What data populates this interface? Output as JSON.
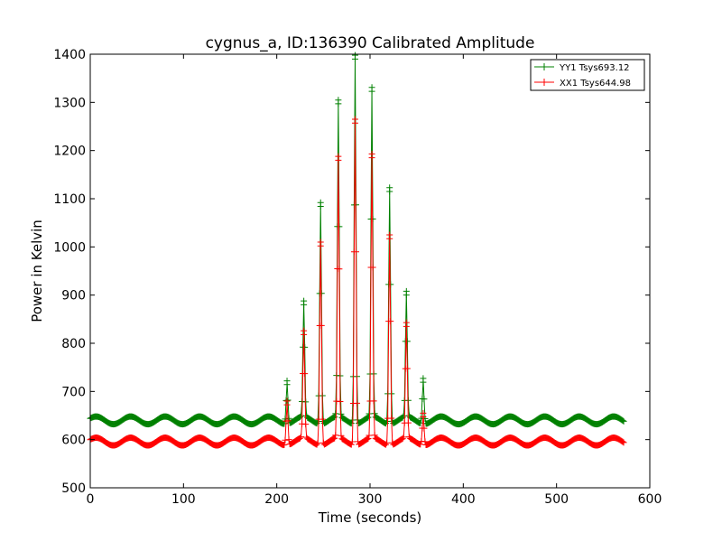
{
  "chart_data": {
    "type": "line",
    "title": "cygnus_a, ID:136390 Calibrated Amplitude",
    "xlabel": "Time (seconds)",
    "ylabel": "Power in Kelvin",
    "xlim": [
      0,
      600
    ],
    "ylim": [
      500,
      1400
    ],
    "xticks": [
      0,
      100,
      200,
      300,
      400,
      500,
      600
    ],
    "yticks": [
      500,
      600,
      700,
      800,
      900,
      1000,
      1100,
      1200,
      1300,
      1400
    ],
    "grid": false,
    "legend_position": "top-right",
    "marker": "plus",
    "series": [
      {
        "name": "YY1 Tsys693.12",
        "color": "#008000",
        "baseline": 640,
        "ripple_amplitude": 8,
        "ripple_period": 37,
        "ripple_phase": 0.5,
        "x_range": [
          0,
          572
        ],
        "sample_step": 1,
        "peak_width": 1.4,
        "peaks": [
          {
            "x": 211,
            "y": 722
          },
          {
            "x": 229,
            "y": 880
          },
          {
            "x": 247,
            "y": 1092
          },
          {
            "x": 266,
            "y": 1297
          },
          {
            "x": 284,
            "y": 1398
          },
          {
            "x": 302,
            "y": 1323
          },
          {
            "x": 321,
            "y": 1123
          },
          {
            "x": 339,
            "y": 900
          },
          {
            "x": 357,
            "y": 727
          }
        ]
      },
      {
        "name": "XX1 Tsys644.98",
        "color": "#ff0000",
        "baseline": 596,
        "ripple_amplitude": 8,
        "ripple_period": 37,
        "ripple_phase": 0.5,
        "x_range": [
          0,
          572
        ],
        "sample_step": 1,
        "peak_width": 1.4,
        "peaks": [
          {
            "x": 211,
            "y": 680
          },
          {
            "x": 229,
            "y": 818
          },
          {
            "x": 247,
            "y": 1010
          },
          {
            "x": 266,
            "y": 1180
          },
          {
            "x": 284,
            "y": 1265
          },
          {
            "x": 302,
            "y": 1185
          },
          {
            "x": 321,
            "y": 1025
          },
          {
            "x": 339,
            "y": 835
          },
          {
            "x": 357,
            "y": 655
          }
        ]
      }
    ]
  }
}
